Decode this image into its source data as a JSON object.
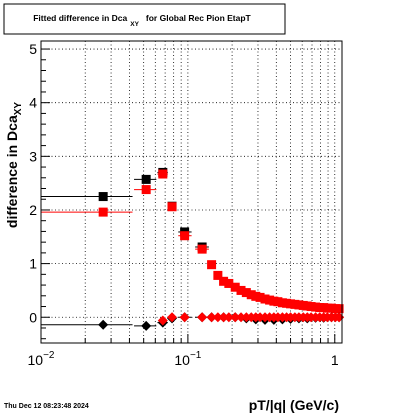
{
  "colors": {
    "background": "#ffffff",
    "frame": "#000000",
    "grid": "#000000",
    "series_black": "#000000",
    "series_red": "#ff0000"
  },
  "footer": {
    "timestamp": "Thu Dec 12 08:23:48 2024"
  },
  "chart_data": {
    "type": "scatter",
    "title_main": "Fitted difference in Dca",
    "title_sub": "XY",
    "title_rest": "for Global Rec Pion EtapT",
    "xlabel": "pT/|q| (GeV/c)",
    "ylabel_main": "difference in Dca",
    "ylabel_sub": "XY",
    "x_scale": "log",
    "xlim": [
      0.01,
      1.12
    ],
    "ylim": [
      -0.48,
      5.15
    ],
    "grid": true,
    "grid_style": "dotted",
    "x_ticks": [
      {
        "value": 0.01,
        "base": "10",
        "exp": "−2"
      },
      {
        "value": 0.1,
        "base": "10",
        "exp": "−1"
      },
      {
        "value": 1,
        "base": "1",
        "exp": ""
      }
    ],
    "y_ticks": [
      {
        "value": 0,
        "label": "0"
      },
      {
        "value": 1,
        "label": "1"
      },
      {
        "value": 2,
        "label": "2"
      },
      {
        "value": 3,
        "label": "3"
      },
      {
        "value": 4,
        "label": "4"
      },
      {
        "value": 5,
        "label": "5"
      }
    ],
    "series": [
      {
        "key": "black-squares",
        "marker": "square",
        "color": "#000000",
        "points": [
          {
            "x": 0.0265,
            "y": 2.25,
            "xlo": 0.01,
            "xhi": 0.042
          },
          {
            "x": 0.052,
            "y": 2.57,
            "xlo": 0.043,
            "xhi": 0.061
          },
          {
            "x": 0.0675,
            "y": 2.7,
            "xlo": 0.062,
            "xhi": 0.073
          },
          {
            "x": 0.078,
            "y": 2.07,
            "xlo": 0.074,
            "xhi": 0.083
          },
          {
            "x": 0.095,
            "y": 1.59,
            "xlo": 0.086,
            "xhi": 0.106
          },
          {
            "x": 0.125,
            "y": 1.31,
            "xlo": 0.112,
            "xhi": 0.139
          }
        ]
      },
      {
        "key": "red-squares",
        "marker": "square",
        "color": "#ff0000",
        "points": [
          {
            "x": 0.0265,
            "y": 1.96,
            "xlo": 0.01,
            "xhi": 0.042
          },
          {
            "x": 0.052,
            "y": 2.38,
            "xlo": 0.043,
            "xhi": 0.061
          },
          {
            "x": 0.0675,
            "y": 2.67,
            "xlo": 0.062,
            "xhi": 0.073
          },
          {
            "x": 0.078,
            "y": 2.06,
            "xlo": 0.074,
            "xhi": 0.083
          },
          {
            "x": 0.095,
            "y": 1.52,
            "xlo": 0.086,
            "xhi": 0.106
          },
          {
            "x": 0.125,
            "y": 1.27,
            "xlo": 0.112,
            "xhi": 0.139
          },
          {
            "x": 0.145,
            "y": 0.98
          },
          {
            "x": 0.16,
            "y": 0.78
          },
          {
            "x": 0.175,
            "y": 0.67
          },
          {
            "x": 0.19,
            "y": 0.63
          },
          {
            "x": 0.21,
            "y": 0.56
          },
          {
            "x": 0.23,
            "y": 0.5
          },
          {
            "x": 0.25,
            "y": 0.46
          },
          {
            "x": 0.27,
            "y": 0.42
          },
          {
            "x": 0.29,
            "y": 0.39
          },
          {
            "x": 0.31,
            "y": 0.37
          },
          {
            "x": 0.335,
            "y": 0.34
          },
          {
            "x": 0.36,
            "y": 0.32
          },
          {
            "x": 0.385,
            "y": 0.3
          },
          {
            "x": 0.41,
            "y": 0.29
          },
          {
            "x": 0.44,
            "y": 0.27
          },
          {
            "x": 0.47,
            "y": 0.26
          },
          {
            "x": 0.5,
            "y": 0.25
          },
          {
            "x": 0.535,
            "y": 0.24
          },
          {
            "x": 0.57,
            "y": 0.23
          },
          {
            "x": 0.61,
            "y": 0.22
          },
          {
            "x": 0.65,
            "y": 0.21
          },
          {
            "x": 0.69,
            "y": 0.2
          },
          {
            "x": 0.74,
            "y": 0.19
          },
          {
            "x": 0.79,
            "y": 0.18
          },
          {
            "x": 0.84,
            "y": 0.18
          },
          {
            "x": 0.89,
            "y": 0.17
          },
          {
            "x": 0.95,
            "y": 0.17
          },
          {
            "x": 1.01,
            "y": 0.16
          },
          {
            "x": 1.07,
            "y": 0.16
          }
        ]
      },
      {
        "key": "black-diamonds",
        "marker": "diamond",
        "color": "#000000",
        "points": [
          {
            "x": 0.0265,
            "y": -0.14,
            "xlo": 0.01,
            "xhi": 0.042
          },
          {
            "x": 0.052,
            "y": -0.16,
            "xlo": 0.043,
            "xhi": 0.061
          },
          {
            "x": 0.0675,
            "y": -0.1,
            "xlo": 0.062,
            "xhi": 0.073
          },
          {
            "x": 0.078,
            "y": -0.02,
            "xlo": 0.074,
            "xhi": 0.083
          },
          {
            "x": 0.095,
            "y": 0.0,
            "xlo": 0.086,
            "xhi": 0.106
          },
          {
            "x": 0.125,
            "y": 0.0,
            "xlo": 0.112,
            "xhi": 0.139
          },
          {
            "x": 0.145,
            "y": 0.0
          },
          {
            "x": 0.175,
            "y": 0.0
          },
          {
            "x": 0.21,
            "y": 0.0
          },
          {
            "x": 0.25,
            "y": -0.02
          },
          {
            "x": 0.29,
            "y": -0.04
          },
          {
            "x": 0.335,
            "y": -0.05
          },
          {
            "x": 0.385,
            "y": -0.05
          },
          {
            "x": 0.44,
            "y": -0.04
          },
          {
            "x": 0.5,
            "y": -0.03
          },
          {
            "x": 0.57,
            "y": -0.02
          },
          {
            "x": 0.65,
            "y": -0.02
          },
          {
            "x": 0.74,
            "y": -0.01
          },
          {
            "x": 0.84,
            "y": -0.01
          },
          {
            "x": 0.95,
            "y": 0.0
          },
          {
            "x": 1.07,
            "y": 0.0
          }
        ]
      },
      {
        "key": "red-diamonds",
        "marker": "diamond",
        "color": "#ff0000",
        "points": [
          {
            "x": 0.0675,
            "y": -0.06
          },
          {
            "x": 0.078,
            "y": 0.0
          },
          {
            "x": 0.095,
            "y": 0.0
          },
          {
            "x": 0.125,
            "y": 0.0
          },
          {
            "x": 0.145,
            "y": 0.0
          },
          {
            "x": 0.16,
            "y": 0.0
          },
          {
            "x": 0.175,
            "y": 0.0
          },
          {
            "x": 0.19,
            "y": 0.0
          },
          {
            "x": 0.21,
            "y": 0.0
          },
          {
            "x": 0.23,
            "y": 0.0
          },
          {
            "x": 0.25,
            "y": 0.0
          },
          {
            "x": 0.27,
            "y": 0.0
          },
          {
            "x": 0.29,
            "y": 0.0
          },
          {
            "x": 0.31,
            "y": 0.0
          },
          {
            "x": 0.335,
            "y": 0.0
          },
          {
            "x": 0.36,
            "y": 0.0
          },
          {
            "x": 0.385,
            "y": 0.0
          },
          {
            "x": 0.41,
            "y": 0.0
          },
          {
            "x": 0.44,
            "y": 0.0
          },
          {
            "x": 0.47,
            "y": 0.0
          },
          {
            "x": 0.5,
            "y": 0.0
          },
          {
            "x": 0.535,
            "y": 0.0
          },
          {
            "x": 0.57,
            "y": 0.0
          },
          {
            "x": 0.61,
            "y": 0.0
          },
          {
            "x": 0.65,
            "y": 0.0
          },
          {
            "x": 0.69,
            "y": 0.0
          },
          {
            "x": 0.74,
            "y": 0.0
          },
          {
            "x": 0.79,
            "y": 0.0
          },
          {
            "x": 0.84,
            "y": 0.0
          },
          {
            "x": 0.89,
            "y": 0.0
          },
          {
            "x": 0.95,
            "y": 0.0
          },
          {
            "x": 1.01,
            "y": 0.0
          },
          {
            "x": 1.07,
            "y": 0.0
          }
        ]
      }
    ]
  }
}
